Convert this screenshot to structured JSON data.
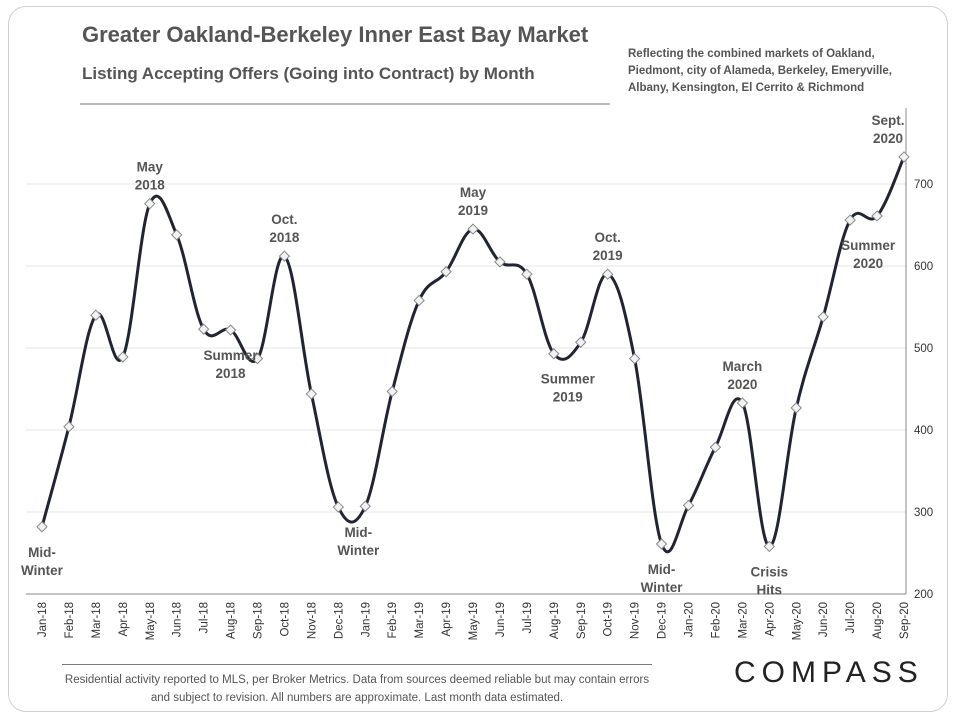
{
  "header": {
    "title": "Greater Oakland-Berkeley Inner East Bay Market",
    "subtitle": "Listing Accepting Offers (Going into Contract) by Month",
    "note": "Reflecting the combined markets of Oakland, Piedmont, city of Alameda, Berkeley, Emeryville, Albany, Kensington, El Cerrito & Richmond"
  },
  "footer": {
    "text": "Residential activity reported to MLS, per Broker Metrics. Data from sources deemed reliable but may contain errors and subject to revision. All numbers are approximate. Last month data estimated."
  },
  "brand": {
    "logo_text": "COMPASS"
  },
  "colors": {
    "line": "#1f2533",
    "marker_fill": "#f2f2f2",
    "marker_stroke": "#888888",
    "grid": "#e6e6e6",
    "text": "#555555"
  },
  "chart_data": {
    "type": "line",
    "title": "Listing Accepting Offers (Going into Contract) by Month",
    "xlabel": "",
    "ylabel": "",
    "ylim": [
      200,
      750
    ],
    "yticks": [
      200,
      300,
      400,
      500,
      600,
      700
    ],
    "grid": true,
    "y_axis_position": "right",
    "categories": [
      "Jan-18",
      "Feb-18",
      "Mar-18",
      "Apr-18",
      "May-18",
      "Jun-18",
      "Jul-18",
      "Aug-18",
      "Sep-18",
      "Oct-18",
      "Nov-18",
      "Dec-18",
      "Jan-19",
      "Feb-19",
      "Mar-19",
      "Apr-19",
      "May-19",
      "Jun-19",
      "Jul-19",
      "Aug-19",
      "Sep-19",
      "Oct-19",
      "Nov-19",
      "Dec-19",
      "Jan-20",
      "Feb-20",
      "Mar-20",
      "Apr-20",
      "May-20",
      "Jun-20",
      "Jul-20",
      "Aug-20",
      "Sep-20"
    ],
    "series": [
      {
        "values": [
          282,
          404,
          540,
          489,
          676,
          638,
          523,
          522,
          487,
          612,
          444,
          306,
          307,
          447,
          558,
          593,
          645,
          605,
          590,
          493,
          507,
          590,
          487,
          261,
          308,
          379,
          433,
          258,
          427,
          538,
          656,
          661,
          733
        ]
      }
    ],
    "annotations": [
      {
        "index": 0,
        "lines": [
          "Mid-",
          "Winter"
        ],
        "pos": "below"
      },
      {
        "index": 4,
        "lines": [
          "May",
          "2018"
        ],
        "pos": "above"
      },
      {
        "index": 7,
        "lines": [
          "Summer",
          "2018"
        ],
        "pos": "below"
      },
      {
        "index": 9,
        "lines": [
          "Oct.",
          "2018"
        ],
        "pos": "above"
      },
      {
        "index": 11,
        "lines": [
          "Mid-",
          "Winter"
        ],
        "pos": "below",
        "dx": 20
      },
      {
        "index": 16,
        "lines": [
          "May",
          "2019"
        ],
        "pos": "above"
      },
      {
        "index": 19,
        "lines": [
          "Summer",
          "2019"
        ],
        "pos": "below",
        "dx": 14
      },
      {
        "index": 21,
        "lines": [
          "Oct.",
          "2019"
        ],
        "pos": "above"
      },
      {
        "index": 23,
        "lines": [
          "Mid-",
          "Winter"
        ],
        "pos": "below"
      },
      {
        "index": 26,
        "lines": [
          "March",
          "2020"
        ],
        "pos": "above"
      },
      {
        "index": 27,
        "lines": [
          "Crisis",
          "Hits"
        ],
        "pos": "below"
      },
      {
        "index": 32,
        "lines": [
          "Sept.",
          "2020"
        ],
        "pos": "above",
        "dx": -16
      },
      {
        "index": 30,
        "lines": [
          "Summer",
          "2020"
        ],
        "pos": "below",
        "dx": 18
      }
    ]
  }
}
